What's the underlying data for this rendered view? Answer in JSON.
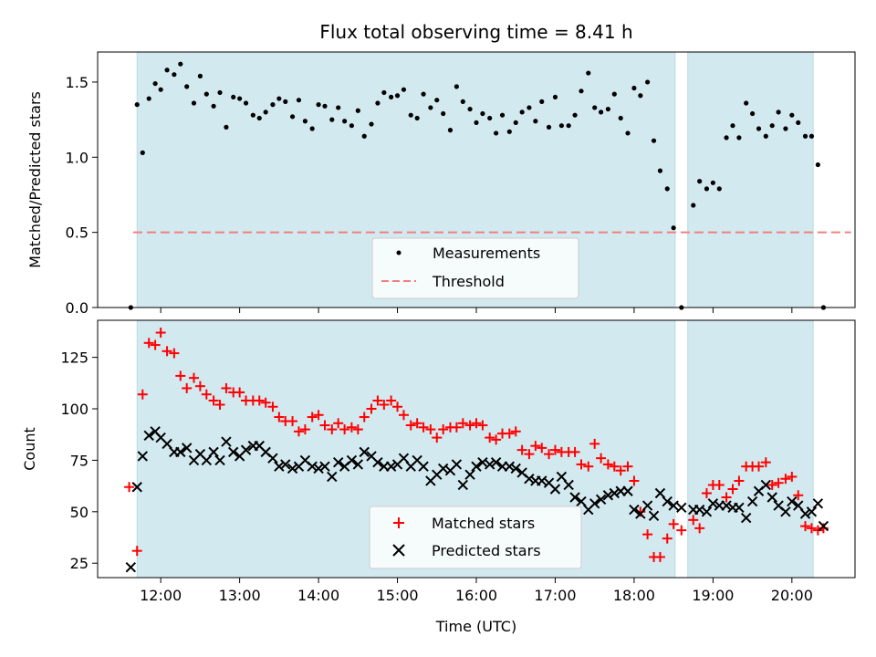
{
  "chart_data": [
    {
      "type": "scatter",
      "title": "Flux total observing time = 8.41 h",
      "xlabel": "",
      "ylabel": "Matched/Predicted stars",
      "xlim": [
        11.2,
        20.8
      ],
      "ylim": [
        0,
        1.7
      ],
      "yticks": [
        0.0,
        0.5,
        1.0,
        1.5
      ],
      "ytick_labels": [
        "0.0",
        "0.5",
        "1.0",
        "1.5"
      ],
      "colors": {
        "measurements": "#000000",
        "threshold": "#f08080",
        "band": "#d3e9f0"
      },
      "bands": [
        [
          11.7,
          18.52
        ],
        [
          18.68,
          20.27
        ]
      ],
      "threshold": {
        "name": "Threshold",
        "value": 0.5
      },
      "legend": [
        "Measurements",
        "Threshold"
      ],
      "series": [
        {
          "name": "Measurements",
          "x": [
            11.62,
            11.7,
            11.77,
            11.85,
            11.93,
            12.0,
            12.08,
            12.17,
            12.25,
            12.33,
            12.42,
            12.5,
            12.58,
            12.67,
            12.75,
            12.83,
            12.92,
            13.0,
            13.08,
            13.17,
            13.25,
            13.33,
            13.42,
            13.5,
            13.58,
            13.67,
            13.75,
            13.83,
            13.92,
            14.0,
            14.08,
            14.17,
            14.25,
            14.33,
            14.42,
            14.5,
            14.58,
            14.67,
            14.75,
            14.83,
            14.92,
            15.0,
            15.08,
            15.17,
            15.25,
            15.33,
            15.42,
            15.5,
            15.58,
            15.67,
            15.75,
            15.83,
            15.92,
            16.0,
            16.08,
            16.17,
            16.25,
            16.33,
            16.42,
            16.5,
            16.58,
            16.67,
            16.75,
            16.83,
            16.92,
            17.0,
            17.08,
            17.17,
            17.25,
            17.33,
            17.42,
            17.5,
            17.58,
            17.67,
            17.75,
            17.83,
            17.92,
            18.0,
            18.08,
            18.17,
            18.25,
            18.33,
            18.42,
            18.5,
            18.6,
            18.75,
            18.83,
            18.92,
            19.0,
            19.08,
            19.17,
            19.25,
            19.33,
            19.42,
            19.5,
            19.58,
            19.67,
            19.75,
            19.83,
            19.92,
            20.0,
            20.08,
            20.17,
            20.25,
            20.33,
            20.4
          ],
          "y": [
            0.0,
            1.35,
            1.03,
            1.39,
            1.49,
            1.45,
            1.58,
            1.55,
            1.62,
            1.47,
            1.36,
            1.54,
            1.42,
            1.34,
            1.43,
            1.2,
            1.4,
            1.39,
            1.36,
            1.28,
            1.26,
            1.3,
            1.35,
            1.39,
            1.37,
            1.27,
            1.38,
            1.24,
            1.19,
            1.35,
            1.34,
            1.25,
            1.33,
            1.24,
            1.21,
            1.31,
            1.14,
            1.22,
            1.36,
            1.43,
            1.4,
            1.41,
            1.45,
            1.28,
            1.26,
            1.42,
            1.33,
            1.38,
            1.29,
            1.18,
            1.47,
            1.37,
            1.32,
            1.23,
            1.29,
            1.26,
            1.16,
            1.28,
            1.17,
            1.23,
            1.3,
            1.33,
            1.24,
            1.37,
            1.2,
            1.4,
            1.21,
            1.21,
            1.28,
            1.44,
            1.56,
            1.33,
            1.3,
            1.32,
            1.42,
            1.26,
            1.16,
            1.46,
            1.41,
            1.5,
            1.11,
            0.91,
            0.79,
            0.53,
            0.0,
            0.68,
            0.84,
            0.79,
            0.83,
            0.79,
            1.13,
            1.21,
            1.13,
            1.36,
            1.29,
            1.19,
            1.14,
            1.21,
            1.3,
            1.19,
            1.28,
            1.23,
            1.14,
            1.14,
            0.95,
            0.0
          ]
        }
      ]
    },
    {
      "type": "scatter",
      "xlabel": "Time (UTC)",
      "ylabel": "Count",
      "xlim": [
        11.2,
        20.8
      ],
      "ylim": [
        18,
        143
      ],
      "xticks": [
        12,
        13,
        14,
        15,
        16,
        17,
        18,
        19,
        20
      ],
      "xtick_labels": [
        "12:00",
        "13:00",
        "14:00",
        "15:00",
        "16:00",
        "17:00",
        "18:00",
        "19:00",
        "20:00"
      ],
      "yticks": [
        25,
        50,
        75,
        100,
        125
      ],
      "ytick_labels": [
        "25",
        "50",
        "75",
        "100",
        "125"
      ],
      "colors": {
        "matched": "#ff0000",
        "predicted": "#000000",
        "band": "#d3e9f0"
      },
      "bands": [
        [
          11.7,
          18.52
        ],
        [
          18.68,
          20.27
        ]
      ],
      "legend": [
        "Matched stars",
        "Predicted stars"
      ],
      "series": [
        {
          "name": "Matched stars",
          "marker": "+",
          "x": [
            11.6,
            11.7,
            11.77,
            11.85,
            11.93,
            12.0,
            12.08,
            12.17,
            12.25,
            12.33,
            12.42,
            12.5,
            12.58,
            12.67,
            12.75,
            12.83,
            12.92,
            13.0,
            13.08,
            13.17,
            13.25,
            13.33,
            13.42,
            13.5,
            13.58,
            13.67,
            13.75,
            13.83,
            13.92,
            14.0,
            14.08,
            14.17,
            14.25,
            14.33,
            14.42,
            14.5,
            14.58,
            14.67,
            14.75,
            14.83,
            14.92,
            15.0,
            15.08,
            15.17,
            15.25,
            15.33,
            15.42,
            15.5,
            15.58,
            15.67,
            15.75,
            15.83,
            15.92,
            16.0,
            16.08,
            16.17,
            16.25,
            16.33,
            16.42,
            16.5,
            16.58,
            16.67,
            16.75,
            16.83,
            16.92,
            17.0,
            17.08,
            17.17,
            17.25,
            17.33,
            17.42,
            17.5,
            17.58,
            17.67,
            17.75,
            17.83,
            17.92,
            18.0,
            18.08,
            18.17,
            18.25,
            18.33,
            18.42,
            18.5,
            18.6,
            18.75,
            18.83,
            18.92,
            19.0,
            19.08,
            19.17,
            19.25,
            19.33,
            19.42,
            19.5,
            19.58,
            19.67,
            19.75,
            19.83,
            19.92,
            20.0,
            20.08,
            20.17,
            20.25,
            20.33,
            20.4
          ],
          "y": [
            62,
            31,
            107,
            132,
            131,
            137,
            128,
            127,
            116,
            110,
            115,
            111,
            107,
            104,
            102,
            110,
            108,
            108,
            104,
            104,
            104,
            103,
            101,
            96,
            94,
            94,
            89,
            90,
            96,
            97,
            92,
            90,
            93,
            90,
            91,
            90,
            96,
            100,
            104,
            102,
            104,
            101,
            97,
            92,
            93,
            91,
            90,
            86,
            90,
            91,
            91,
            93,
            92,
            93,
            92,
            86,
            85,
            88,
            88,
            89,
            80,
            78,
            82,
            81,
            78,
            80,
            79,
            79,
            79,
            73,
            72,
            83,
            76,
            73,
            72,
            70,
            72,
            65,
            50,
            39,
            28,
            28,
            37,
            44,
            41,
            46,
            42,
            59,
            63,
            63,
            57,
            61,
            65,
            72,
            72,
            72,
            74,
            63,
            64,
            66,
            67,
            58,
            43,
            42,
            41,
            42
          ]
        },
        {
          "name": "Predicted stars",
          "marker": "x",
          "x": [
            11.62,
            11.7,
            11.77,
            11.85,
            11.93,
            12.0,
            12.08,
            12.17,
            12.25,
            12.33,
            12.42,
            12.5,
            12.58,
            12.67,
            12.75,
            12.83,
            12.92,
            13.0,
            13.08,
            13.17,
            13.25,
            13.33,
            13.42,
            13.5,
            13.58,
            13.67,
            13.75,
            13.83,
            13.92,
            14.0,
            14.08,
            14.17,
            14.25,
            14.33,
            14.42,
            14.5,
            14.58,
            14.67,
            14.75,
            14.83,
            14.92,
            15.0,
            15.08,
            15.17,
            15.25,
            15.33,
            15.42,
            15.5,
            15.58,
            15.67,
            15.75,
            15.83,
            15.92,
            16.0,
            16.08,
            16.17,
            16.25,
            16.33,
            16.42,
            16.5,
            16.58,
            16.67,
            16.75,
            16.83,
            16.92,
            17.0,
            17.08,
            17.17,
            17.25,
            17.33,
            17.42,
            17.5,
            17.58,
            17.67,
            17.75,
            17.83,
            17.92,
            18.0,
            18.08,
            18.17,
            18.25,
            18.33,
            18.42,
            18.5,
            18.6,
            18.75,
            18.83,
            18.92,
            19.0,
            19.08,
            19.17,
            19.25,
            19.33,
            19.42,
            19.5,
            19.58,
            19.67,
            19.75,
            19.83,
            19.92,
            20.0,
            20.08,
            20.17,
            20.25,
            20.33,
            20.4
          ],
          "y": [
            23,
            62,
            77,
            87,
            89,
            86,
            83,
            79,
            79,
            81,
            75,
            78,
            75,
            79,
            75,
            84,
            79,
            77,
            80,
            82,
            82,
            79,
            76,
            72,
            73,
            71,
            72,
            75,
            72,
            71,
            72,
            67,
            74,
            72,
            75,
            73,
            79,
            77,
            74,
            72,
            72,
            73,
            76,
            72,
            75,
            72,
            65,
            68,
            71,
            70,
            73,
            63,
            68,
            72,
            74,
            73,
            74,
            72,
            72,
            71,
            69,
            66,
            65,
            65,
            64,
            61,
            67,
            63,
            57,
            55,
            51,
            54,
            56,
            58,
            59,
            60,
            60,
            51,
            49,
            53,
            48,
            59,
            55,
            53,
            52,
            51,
            51,
            50,
            54,
            53,
            53,
            52,
            52,
            47,
            55,
            60,
            63,
            57,
            53,
            50,
            55,
            53,
            49,
            50,
            54,
            43
          ]
        }
      ]
    }
  ]
}
